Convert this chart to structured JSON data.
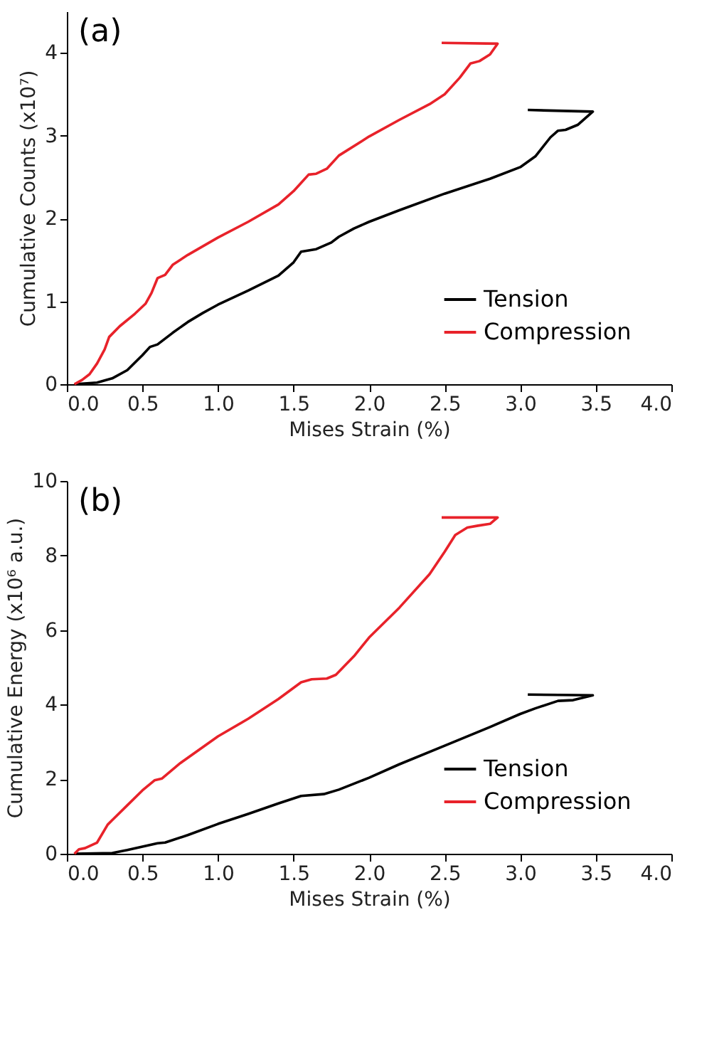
{
  "chart_data": [
    {
      "type": "line",
      "annotations": [
        "(a)"
      ],
      "xlabel": "Mises Strain (%)",
      "ylabel": "Cumulative Counts (x10⁷)",
      "xlim": [
        0,
        4
      ],
      "xticks": [
        {
          "value": 0,
          "label": "0.0"
        },
        0.5,
        {
          "value": 1,
          "label": "1.0"
        },
        1.5,
        {
          "value": 2,
          "label": "2.0"
        },
        2.5,
        {
          "value": 3,
          "label": "3.0"
        },
        3.5,
        {
          "value": 4,
          "label": "4.0"
        }
      ],
      "ylim": [
        0,
        4.5
      ],
      "yticks": [
        0,
        1,
        2,
        3,
        4
      ],
      "grid": false,
      "legend": "bottom right",
      "line_style": "solid",
      "marker": "none",
      "series": [
        {
          "name": "Tension",
          "color": "#000000",
          "x": [
            0.05,
            0.2,
            0.3,
            0.4,
            0.5,
            0.55,
            0.6,
            0.7,
            0.8,
            0.9,
            1.0,
            1.2,
            1.4,
            1.5,
            1.55,
            1.65,
            1.75,
            1.8,
            1.9,
            2.0,
            2.2,
            2.5,
            2.8,
            3.0,
            3.1,
            3.2,
            3.25,
            3.3,
            3.38,
            3.48,
            3.05
          ],
          "values": [
            0,
            0.02,
            0.07,
            0.17,
            0.35,
            0.45,
            0.48,
            0.62,
            0.75,
            0.86,
            0.96,
            1.13,
            1.31,
            1.47,
            1.6,
            1.63,
            1.71,
            1.78,
            1.88,
            1.96,
            2.1,
            2.3,
            2.48,
            2.62,
            2.75,
            2.98,
            3.06,
            3.07,
            3.13,
            3.29,
            3.31
          ]
        },
        {
          "name": "Compression",
          "color": "#e8222a",
          "x": [
            0.05,
            0.1,
            0.15,
            0.2,
            0.25,
            0.28,
            0.35,
            0.45,
            0.52,
            0.56,
            0.6,
            0.65,
            0.7,
            0.8,
            1.0,
            1.2,
            1.4,
            1.5,
            1.6,
            1.65,
            1.72,
            1.8,
            2.0,
            2.2,
            2.4,
            2.5,
            2.6,
            2.67,
            2.73,
            2.8,
            2.85,
            2.48
          ],
          "values": [
            0,
            0.05,
            0.12,
            0.25,
            0.42,
            0.57,
            0.7,
            0.85,
            0.97,
            1.1,
            1.28,
            1.32,
            1.44,
            1.56,
            1.77,
            1.96,
            2.17,
            2.33,
            2.53,
            2.54,
            2.6,
            2.76,
            2.99,
            3.19,
            3.38,
            3.5,
            3.7,
            3.87,
            3.9,
            3.98,
            4.11,
            4.12
          ]
        }
      ]
    },
    {
      "type": "line",
      "annotations": [
        "(b)"
      ],
      "xlabel": "Mises Strain (%)",
      "ylabel": "Cumulative Energy (x10⁶ a.u.)",
      "xlim": [
        0,
        4
      ],
      "xticks": [
        {
          "value": 0,
          "label": "0.0"
        },
        0.5,
        {
          "value": 1,
          "label": "1.0"
        },
        1.5,
        {
          "value": 2,
          "label": "2.0"
        },
        2.5,
        {
          "value": 3,
          "label": "3.0"
        },
        3.5,
        {
          "value": 4,
          "label": "4.0"
        }
      ],
      "ylim": [
        0,
        10
      ],
      "yticks": [
        0,
        2,
        4,
        6,
        8,
        10
      ],
      "grid": false,
      "legend": "bottom right",
      "line_style": "solid",
      "marker": "none",
      "series": [
        {
          "name": "Tension",
          "color": "#000000",
          "x": [
            0.05,
            0.3,
            0.4,
            0.6,
            0.65,
            0.8,
            1.0,
            1.2,
            1.4,
            1.55,
            1.7,
            1.8,
            2.0,
            2.2,
            2.5,
            2.8,
            3.0,
            3.1,
            3.25,
            3.35,
            3.48,
            3.05
          ],
          "values": [
            0,
            0.02,
            0.1,
            0.28,
            0.3,
            0.5,
            0.8,
            1.07,
            1.35,
            1.55,
            1.6,
            1.72,
            2.04,
            2.4,
            2.9,
            3.4,
            3.75,
            3.9,
            4.1,
            4.12,
            4.25,
            4.27
          ]
        },
        {
          "name": "Compression",
          "color": "#e8222a",
          "x": [
            0.05,
            0.08,
            0.12,
            0.2,
            0.27,
            0.3,
            0.4,
            0.5,
            0.58,
            0.63,
            0.75,
            1.0,
            1.2,
            1.4,
            1.55,
            1.62,
            1.72,
            1.78,
            1.9,
            2.0,
            2.2,
            2.4,
            2.5,
            2.57,
            2.65,
            2.72,
            2.8,
            2.85,
            2.48
          ],
          "values": [
            0,
            0.12,
            0.15,
            0.3,
            0.78,
            0.9,
            1.3,
            1.7,
            1.97,
            2.02,
            2.43,
            3.15,
            3.62,
            4.15,
            4.6,
            4.68,
            4.7,
            4.8,
            5.3,
            5.8,
            6.6,
            7.5,
            8.1,
            8.55,
            8.75,
            8.8,
            8.85,
            9.02,
            9.02
          ]
        }
      ]
    }
  ]
}
